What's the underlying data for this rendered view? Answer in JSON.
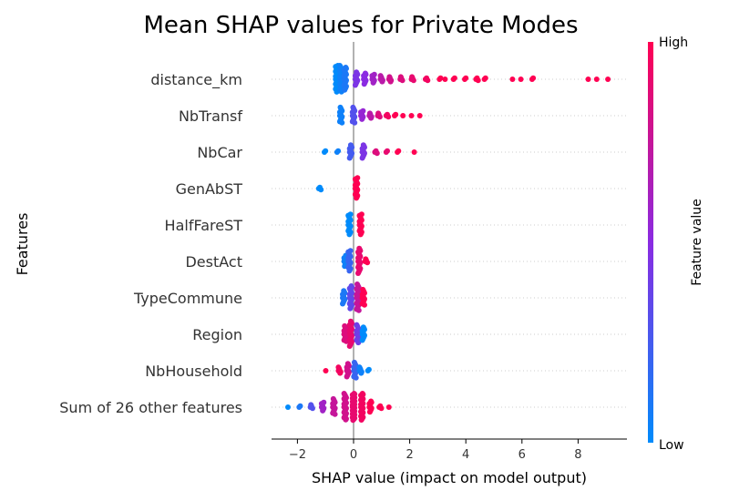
{
  "chart_data": {
    "type": "scatter",
    "subtype": "shap-beeswarm",
    "title": "Mean SHAP values for Private Modes",
    "xlabel": "SHAP value (impact on model output)",
    "ylabel": "Features",
    "xlim": [
      -2.9,
      9.7
    ],
    "xticks": [
      "−2",
      "0",
      "2",
      "4",
      "6",
      "8"
    ],
    "xtick_values": [
      -2,
      0,
      2,
      4,
      6,
      8
    ],
    "grid": false,
    "colorbar": {
      "title": "Feature value",
      "high_label": "High",
      "low_label": "Low",
      "high_color": "#ff0052",
      "mid_color": "#8a2be2",
      "low_color": "#008bfb"
    },
    "features": [
      {
        "name": "distance_km",
        "points": [
          {
            "x": -0.6,
            "v": 0.0,
            "n": 28
          },
          {
            "x": -0.45,
            "v": 0.05,
            "n": 26
          },
          {
            "x": -0.3,
            "v": 0.1,
            "n": 20
          },
          {
            "x": 0.1,
            "v": 0.45,
            "n": 12
          },
          {
            "x": 0.4,
            "v": 0.5,
            "n": 10
          },
          {
            "x": 0.7,
            "v": 0.6,
            "n": 8
          },
          {
            "x": 1.0,
            "v": 0.7,
            "n": 6
          },
          {
            "x": 1.3,
            "v": 0.8,
            "n": 5
          },
          {
            "x": 1.7,
            "v": 0.85,
            "n": 4
          },
          {
            "x": 2.1,
            "v": 0.9,
            "n": 4
          },
          {
            "x": 2.6,
            "v": 0.95,
            "n": 3
          },
          {
            "x": 3.1,
            "v": 1.0,
            "n": 2
          },
          {
            "x": 3.3,
            "v": 1.0,
            "n": 1
          },
          {
            "x": 3.6,
            "v": 1.0,
            "n": 2
          },
          {
            "x": 4.0,
            "v": 1.0,
            "n": 2
          },
          {
            "x": 4.4,
            "v": 1.0,
            "n": 3
          },
          {
            "x": 4.7,
            "v": 1.0,
            "n": 2
          },
          {
            "x": 5.7,
            "v": 1.0,
            "n": 1
          },
          {
            "x": 6.0,
            "v": 1.0,
            "n": 1
          },
          {
            "x": 6.4,
            "v": 1.0,
            "n": 2
          },
          {
            "x": 8.4,
            "v": 1.0,
            "n": 1
          },
          {
            "x": 8.7,
            "v": 1.0,
            "n": 1
          },
          {
            "x": 9.1,
            "v": 1.0,
            "n": 1
          }
        ]
      },
      {
        "name": "NbTransf",
        "points": [
          {
            "x": -0.45,
            "v": 0.05,
            "n": 14
          },
          {
            "x": 0.0,
            "v": 0.3,
            "n": 14
          },
          {
            "x": 0.3,
            "v": 0.55,
            "n": 8
          },
          {
            "x": 0.6,
            "v": 0.7,
            "n": 5
          },
          {
            "x": 0.9,
            "v": 0.85,
            "n": 4
          },
          {
            "x": 1.2,
            "v": 0.95,
            "n": 3
          },
          {
            "x": 1.5,
            "v": 1.0,
            "n": 2
          },
          {
            "x": 1.8,
            "v": 1.0,
            "n": 1
          },
          {
            "x": 2.1,
            "v": 1.0,
            "n": 1
          },
          {
            "x": 2.4,
            "v": 1.0,
            "n": 1
          }
        ]
      },
      {
        "name": "NbCar",
        "points": [
          {
            "x": -1.0,
            "v": 0.0,
            "n": 2
          },
          {
            "x": -0.55,
            "v": 0.05,
            "n": 2
          },
          {
            "x": -0.1,
            "v": 0.25,
            "n": 12
          },
          {
            "x": 0.35,
            "v": 0.45,
            "n": 12
          },
          {
            "x": 0.8,
            "v": 0.85,
            "n": 3
          },
          {
            "x": 1.2,
            "v": 0.9,
            "n": 2
          },
          {
            "x": 1.6,
            "v": 1.0,
            "n": 2
          },
          {
            "x": 2.2,
            "v": 1.0,
            "n": 1
          }
        ]
      },
      {
        "name": "GenAbST",
        "points": [
          {
            "x": -1.2,
            "v": 0.0,
            "n": 3
          },
          {
            "x": 0.1,
            "v": 1.0,
            "n": 18
          }
        ]
      },
      {
        "name": "HalfFareST",
        "points": [
          {
            "x": -0.15,
            "v": 0.0,
            "n": 18
          },
          {
            "x": 0.25,
            "v": 1.0,
            "n": 18
          }
        ]
      },
      {
        "name": "DestAct",
        "points": [
          {
            "x": -0.3,
            "v": 0.05,
            "n": 10
          },
          {
            "x": -0.15,
            "v": 0.2,
            "n": 18
          },
          {
            "x": 0.2,
            "v": 0.9,
            "n": 22
          },
          {
            "x": 0.45,
            "v": 1.0,
            "n": 4
          }
        ]
      },
      {
        "name": "TypeCommune",
        "points": [
          {
            "x": -0.35,
            "v": 0.1,
            "n": 12
          },
          {
            "x": -0.1,
            "v": 0.35,
            "n": 20
          },
          {
            "x": 0.15,
            "v": 0.75,
            "n": 24
          },
          {
            "x": 0.35,
            "v": 1.0,
            "n": 14
          }
        ]
      },
      {
        "name": "Region",
        "points": [
          {
            "x": -0.3,
            "v": 0.85,
            "n": 14
          },
          {
            "x": -0.1,
            "v": 0.9,
            "n": 22
          },
          {
            "x": 0.15,
            "v": 0.4,
            "n": 16
          },
          {
            "x": 0.35,
            "v": 0.0,
            "n": 12
          }
        ]
      },
      {
        "name": "NbHousehold",
        "points": [
          {
            "x": -0.95,
            "v": 1.0,
            "n": 1
          },
          {
            "x": -0.5,
            "v": 0.95,
            "n": 6
          },
          {
            "x": -0.2,
            "v": 0.8,
            "n": 12
          },
          {
            "x": 0.05,
            "v": 0.2,
            "n": 14
          },
          {
            "x": 0.25,
            "v": 0.05,
            "n": 6
          },
          {
            "x": 0.55,
            "v": 0.0,
            "n": 2
          }
        ]
      },
      {
        "name": "Sum of 26 other features",
        "points": [
          {
            "x": -2.3,
            "v": 0.0,
            "n": 1
          },
          {
            "x": -1.9,
            "v": 0.1,
            "n": 2
          },
          {
            "x": -1.5,
            "v": 0.3,
            "n": 4
          },
          {
            "x": -1.1,
            "v": 0.6,
            "n": 8
          },
          {
            "x": -0.7,
            "v": 0.75,
            "n": 14
          },
          {
            "x": -0.3,
            "v": 0.8,
            "n": 26
          },
          {
            "x": 0.0,
            "v": 0.9,
            "n": 40
          },
          {
            "x": 0.3,
            "v": 0.95,
            "n": 30
          },
          {
            "x": 0.6,
            "v": 1.0,
            "n": 10
          },
          {
            "x": 0.95,
            "v": 1.0,
            "n": 3
          },
          {
            "x": 1.3,
            "v": 1.0,
            "n": 1
          }
        ]
      }
    ]
  }
}
